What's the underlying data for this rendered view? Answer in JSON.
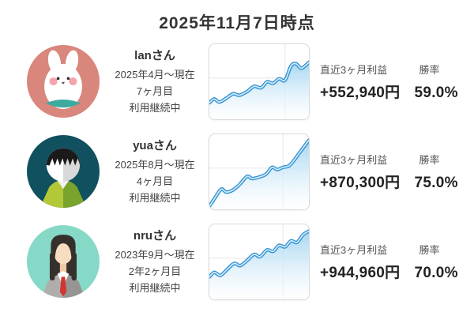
{
  "title": "2025年11月7日時点",
  "stats": {
    "profit_label": "直近3ヶ月利益",
    "win_rate_label": "勝率"
  },
  "rows": [
    {
      "avatar": "rabbit-avatar",
      "avatar_bg": "#d9867d",
      "name": "lanさん",
      "period": "2025年4月〜現在",
      "duration": "7ヶ月目",
      "status": "利用継続中",
      "profit": "+552,940円",
      "win_rate": "59.0%"
    },
    {
      "avatar": "boy-avatar",
      "avatar_bg": "#10505f",
      "name": "yuaさん",
      "period": "2025年8月〜現在",
      "duration": "4ヶ月目",
      "status": "利用継続中",
      "profit": "+870,300円",
      "win_rate": "75.0%"
    },
    {
      "avatar": "woman-avatar",
      "avatar_bg": "#86d9c6",
      "name": "nruさん",
      "period": "2023年9月〜現在",
      "duration": "2年2ヶ月目",
      "status": "利用継続中",
      "profit": "+944,960円",
      "win_rate": "70.0%"
    }
  ],
  "colors": {
    "line_outer": "#2e8ecf",
    "line_inner": "#cdeafa",
    "area_top": "#a0d4f1",
    "area_bottom": "#ffffff",
    "grid": "#e7e7e7",
    "chart_border": "#d9d9d9",
    "title_text": "#333333",
    "value_text": "#222222"
  },
  "chart_data": [
    {
      "type": "area",
      "title": "lanさん 利益推移スパークライン (軸ラベルなし)",
      "xlabel": "",
      "ylabel": "",
      "grid": {
        "v_x_pct": 76,
        "h_y_pct": 45
      },
      "points_pct": [
        [
          0,
          78
        ],
        [
          5,
          73
        ],
        [
          10,
          77
        ],
        [
          17,
          72
        ],
        [
          24,
          66
        ],
        [
          30,
          68
        ],
        [
          38,
          63
        ],
        [
          45,
          56
        ],
        [
          52,
          58
        ],
        [
          58,
          50
        ],
        [
          64,
          52
        ],
        [
          70,
          46
        ],
        [
          76,
          48
        ],
        [
          82,
          29
        ],
        [
          87,
          26
        ],
        [
          92,
          32
        ],
        [
          96,
          29
        ],
        [
          100,
          24
        ]
      ]
    },
    {
      "type": "area",
      "title": "yuaさん 利益推移スパークライン (軸ラベルなし)",
      "xlabel": "",
      "ylabel": "",
      "grid": {
        "v_x_pct": 74,
        "h_y_pct": 45
      },
      "points_pct": [
        [
          0,
          96
        ],
        [
          6,
          84
        ],
        [
          12,
          73
        ],
        [
          17,
          77
        ],
        [
          24,
          74
        ],
        [
          31,
          66
        ],
        [
          38,
          56
        ],
        [
          43,
          59
        ],
        [
          50,
          57
        ],
        [
          57,
          53
        ],
        [
          63,
          44
        ],
        [
          68,
          47
        ],
        [
          74,
          44
        ],
        [
          80,
          42
        ],
        [
          86,
          33
        ],
        [
          92,
          22
        ],
        [
          100,
          8
        ]
      ]
    },
    {
      "type": "area",
      "title": "nruさん 利益推移スパークライン (軸ラベルなし)",
      "xlabel": "",
      "ylabel": "",
      "grid": {
        "v_x_pct": 74,
        "h_y_pct": 45
      },
      "points_pct": [
        [
          0,
          70
        ],
        [
          5,
          64
        ],
        [
          11,
          68
        ],
        [
          18,
          60
        ],
        [
          25,
          52
        ],
        [
          31,
          55
        ],
        [
          38,
          48
        ],
        [
          45,
          40
        ],
        [
          51,
          43
        ],
        [
          58,
          34
        ],
        [
          64,
          36
        ],
        [
          70,
          28
        ],
        [
          76,
          30
        ],
        [
          82,
          22
        ],
        [
          88,
          24
        ],
        [
          94,
          14
        ],
        [
          100,
          9
        ]
      ]
    }
  ]
}
